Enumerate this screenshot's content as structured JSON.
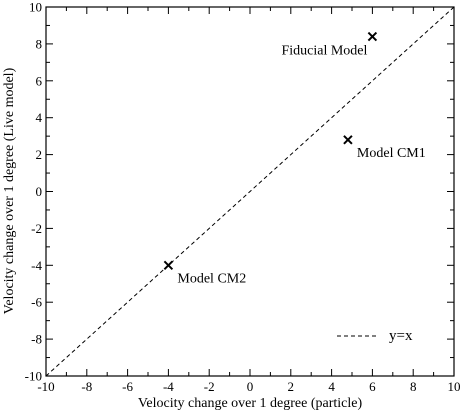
{
  "chart_data": {
    "type": "scatter",
    "title": "",
    "xlabel": "Velocity change over 1 degree (particle)",
    "ylabel": "Velocity change over 1 degree (Live model)",
    "xlim": [
      -10,
      10
    ],
    "ylim": [
      -10,
      10
    ],
    "xticks": [
      -10,
      -8,
      -6,
      -4,
      -2,
      0,
      2,
      4,
      6,
      8,
      10
    ],
    "yticks": [
      -10,
      -8,
      -6,
      -4,
      -2,
      0,
      2,
      4,
      6,
      8,
      10
    ],
    "xtick_labels": [
      "-10",
      "-8",
      "-6",
      "-4",
      "-2",
      "0",
      "2",
      "4",
      "6",
      "8",
      "10"
    ],
    "ytick_labels": [
      "-10",
      "-8",
      "-6",
      "-4",
      "-2",
      "0",
      "2",
      "4",
      "6",
      "8",
      "10"
    ],
    "grid": false,
    "legend_position": "bottom-right",
    "points": [
      {
        "label": "Fiducial Model",
        "x": 6.0,
        "y": 8.4,
        "marker": "x",
        "label_anchor": "left"
      },
      {
        "label": "Model CM1",
        "x": 4.8,
        "y": 2.8,
        "marker": "x",
        "label_anchor": "right"
      },
      {
        "label": "Model CM2",
        "x": -4.0,
        "y": -4.0,
        "marker": "x",
        "label_anchor": "right"
      }
    ],
    "reference_line": {
      "name": "y=x",
      "x": [
        -10,
        10
      ],
      "y": [
        -10,
        10
      ],
      "style": "dashed"
    },
    "colors": {
      "axes": "#000000",
      "marker": "#000000",
      "line": "#000000"
    }
  }
}
